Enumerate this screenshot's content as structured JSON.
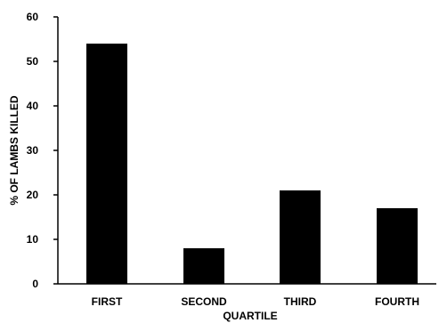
{
  "chart_data": {
    "type": "bar",
    "categories": [
      "FIRST",
      "SECOND",
      "THIRD",
      "FOURTH"
    ],
    "values": [
      54,
      8,
      21,
      17
    ],
    "xlabel": "QUARTILE",
    "ylabel": "% OF LAMBS KILLED",
    "ylim": [
      0,
      60
    ],
    "yticks": [
      0,
      10,
      20,
      30,
      40,
      50,
      60
    ],
    "grid": false,
    "bar_color": "#000000"
  }
}
